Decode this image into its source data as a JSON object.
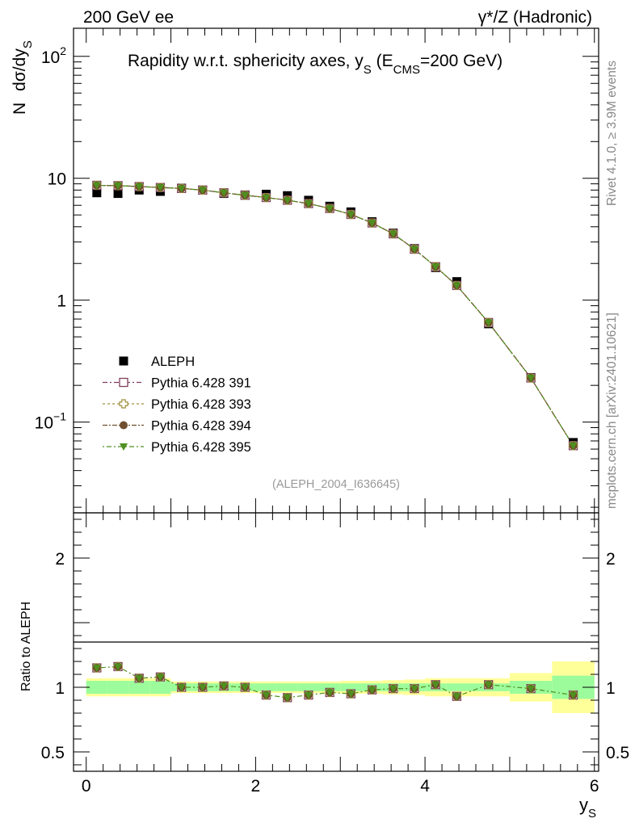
{
  "header": {
    "left_label": "200 GeV ee",
    "right_label": "γ*/Z (Hadronic)"
  },
  "side": {
    "rivet_label": "Rivet 4.1.0, ≥ 3.9M events",
    "mcplots_label": "mcplots.cern.ch [arXiv:2401.10621]"
  },
  "chart_data": {
    "type": "scatter",
    "title_parts": {
      "main": "Rapidity w.r.t. sphericity axes, y",
      "sub_s": "S",
      "open": " (E",
      "sub_cms": "CMS",
      "close": "=200 GeV)"
    },
    "analysis_label": "(ALEPH_2004_I636645)",
    "ylabel_main": {
      "n": "N",
      "expr": "dσ/dy",
      "sub": "S"
    },
    "ylabel_ratio": "Ratio to ALEPH",
    "xlabel": {
      "main": "y",
      "sub": "S"
    },
    "yscale": "log",
    "ylim": [
      0.018,
      170
    ],
    "xlim": [
      -0.15,
      6.05
    ],
    "ratio_ylim": [
      0.35,
      2.35
    ],
    "main_tick_labels": [
      {
        "value": 100,
        "base": "10",
        "exp": "2"
      },
      {
        "value": 10,
        "base": "10",
        "exp": ""
      },
      {
        "value": 1,
        "base": "1",
        "exp": ""
      },
      {
        "value": 0.1,
        "base": "10",
        "exp": "−1"
      }
    ],
    "ratio_tick_labels": [
      {
        "value": 2,
        "label": "2"
      },
      {
        "value": 1,
        "label": "1"
      },
      {
        "value": 0.5,
        "label": "0.5"
      }
    ],
    "x_tick_labels": [
      {
        "value": 0,
        "label": "0"
      },
      {
        "value": 2,
        "label": "2"
      },
      {
        "value": 4,
        "label": "4"
      },
      {
        "value": 6,
        "label": "6"
      }
    ],
    "bins": [
      {
        "lo": 0.0,
        "hi": 0.25
      },
      {
        "lo": 0.25,
        "hi": 0.5
      },
      {
        "lo": 0.5,
        "hi": 0.75
      },
      {
        "lo": 0.75,
        "hi": 1.0
      },
      {
        "lo": 1.0,
        "hi": 1.25
      },
      {
        "lo": 1.25,
        "hi": 1.5
      },
      {
        "lo": 1.5,
        "hi": 1.75
      },
      {
        "lo": 1.75,
        "hi": 2.0
      },
      {
        "lo": 2.0,
        "hi": 2.25
      },
      {
        "lo": 2.25,
        "hi": 2.5
      },
      {
        "lo": 2.5,
        "hi": 2.75
      },
      {
        "lo": 2.75,
        "hi": 3.0
      },
      {
        "lo": 3.0,
        "hi": 3.25
      },
      {
        "lo": 3.25,
        "hi": 3.5
      },
      {
        "lo": 3.5,
        "hi": 3.75
      },
      {
        "lo": 3.75,
        "hi": 4.0
      },
      {
        "lo": 4.0,
        "hi": 4.25
      },
      {
        "lo": 4.25,
        "hi": 4.5
      },
      {
        "lo": 4.5,
        "hi": 5.0
      },
      {
        "lo": 5.0,
        "hi": 5.5
      },
      {
        "lo": 5.5,
        "hi": 6.0
      }
    ],
    "x": [
      0.125,
      0.375,
      0.625,
      0.875,
      1.125,
      1.375,
      1.625,
      1.875,
      2.125,
      2.375,
      2.625,
      2.875,
      3.125,
      3.375,
      3.625,
      3.875,
      4.125,
      4.375,
      4.75,
      5.25,
      5.75
    ],
    "data": {
      "name": "ALEPH",
      "values": [
        7.6,
        7.5,
        8.0,
        7.8,
        8.3,
        8.0,
        7.5,
        7.3,
        7.4,
        7.2,
        6.6,
        5.9,
        5.3,
        4.4,
        3.55,
        2.65,
        1.85,
        1.42,
        0.64,
        0.232,
        0.068
      ],
      "stat_band": [
        0.05,
        0.05,
        0.05,
        0.05,
        0.03,
        0.03,
        0.03,
        0.03,
        0.03,
        0.03,
        0.03,
        0.03,
        0.03,
        0.03,
        0.03,
        0.03,
        0.03,
        0.03,
        0.03,
        0.05,
        0.09
      ],
      "total_band": [
        0.07,
        0.07,
        0.07,
        0.07,
        0.045,
        0.045,
        0.045,
        0.045,
        0.045,
        0.045,
        0.045,
        0.045,
        0.05,
        0.05,
        0.055,
        0.06,
        0.07,
        0.07,
        0.07,
        0.11,
        0.2
      ],
      "band_colors": {
        "inner": "#9cfc9c",
        "outer": "#ffff99"
      }
    },
    "series": [
      {
        "name": "Pythia 6.428 391",
        "marker": "open-square",
        "color": "#7f3f5f",
        "values": [
          8.75,
          8.7,
          8.55,
          8.4,
          8.25,
          8.0,
          7.6,
          7.25,
          6.95,
          6.6,
          6.2,
          5.65,
          5.05,
          4.3,
          3.5,
          2.62,
          1.88,
          1.32,
          0.655,
          0.23,
          0.064
        ]
      },
      {
        "name": "Pythia 6.428 393",
        "marker": "open-cross",
        "color": "#9f8f3f",
        "values": [
          8.75,
          8.7,
          8.55,
          8.4,
          8.25,
          8.0,
          7.6,
          7.25,
          6.95,
          6.6,
          6.2,
          5.65,
          5.05,
          4.3,
          3.5,
          2.62,
          1.88,
          1.32,
          0.655,
          0.23,
          0.064
        ]
      },
      {
        "name": "Pythia 6.428 394",
        "marker": "circle",
        "color": "#6f4f2f",
        "values": [
          8.75,
          8.7,
          8.55,
          8.4,
          8.25,
          8.0,
          7.6,
          7.25,
          6.95,
          6.6,
          6.2,
          5.65,
          5.05,
          4.3,
          3.5,
          2.62,
          1.88,
          1.32,
          0.655,
          0.23,
          0.064
        ]
      },
      {
        "name": "Pythia 6.428 395",
        "marker": "triangle-down",
        "color": "#4f8f1f",
        "values": [
          8.75,
          8.7,
          8.55,
          8.4,
          8.25,
          8.0,
          7.6,
          7.25,
          6.95,
          6.6,
          6.2,
          5.65,
          5.05,
          4.3,
          3.5,
          2.62,
          1.88,
          1.32,
          0.655,
          0.23,
          0.064
        ]
      }
    ],
    "ratio_values": [
      1.15,
      1.16,
      1.07,
      1.08,
      1.0,
      1.0,
      1.01,
      1.0,
      0.94,
      0.92,
      0.94,
      0.96,
      0.95,
      0.98,
      0.99,
      0.99,
      1.02,
      0.93,
      1.02,
      0.99,
      0.94
    ],
    "legend_position": "middle-left"
  }
}
